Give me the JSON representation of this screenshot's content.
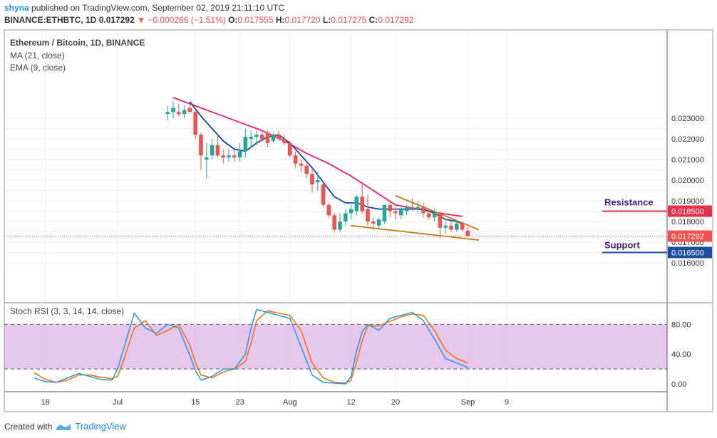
{
  "header": {
    "user": "shyna",
    "published_text": "published on TradingView.com, September 02, 2019 21:11:10 UTC",
    "symbol": "BINANCE:ETHBTC, 1D",
    "last": "0.017292",
    "change": "−0.000266 (−1.51%)",
    "o_label": "O:",
    "o": "0.017555",
    "h_label": "H:",
    "h": "0.017720",
    "l_label": "L:",
    "l": "0.017275",
    "c_label": "C:",
    "c": "0.017292"
  },
  "legend": {
    "title": "Ethereum / Bitcoin, 1D, BINANCE",
    "ma": "MA (21, close)",
    "ema": "EMA (9, close)",
    "rsi": "Stoch RSI (3, 3, 14, 14, close)"
  },
  "annotations": {
    "resistance": "Resistance",
    "support": "Support"
  },
  "footer": {
    "created_with": "Created with",
    "brand": "TradingView"
  },
  "colors": {
    "up": "#26a69a",
    "down": "#ef5350",
    "ma": "#e91e63",
    "ema": "#0d47a1",
    "wedge": "#c27b16",
    "resistance": "#e5324a",
    "support": "#1a4fa0",
    "rsi_k": "#2196f3",
    "rsi_d": "#ff6d00",
    "rsi_band": "#e1bee7"
  },
  "chart_data": [
    {
      "type": "candlestick",
      "title": "Ethereum / Bitcoin, 1D, BINANCE",
      "y_ticks": [
        0.016,
        0.0165,
        0.017,
        0.0175,
        0.018,
        0.0185,
        0.019,
        0.0195,
        0.02,
        0.0205,
        0.021,
        0.0215,
        0.022,
        0.0225,
        0.023
      ],
      "y_tick_labels": [
        "0.016000",
        "",
        "0.017000",
        "",
        "0.018000",
        "",
        "0.019000",
        "",
        "0.020000",
        "",
        "0.021000",
        "",
        "0.022000",
        "",
        "0.023000"
      ],
      "x_tick_labels": [
        "18",
        "Jul",
        "15",
        "23",
        "Aug",
        "12",
        "20",
        "Sep",
        "9"
      ],
      "x_tick_days": [
        -13,
        0,
        14,
        22,
        31,
        42,
        50,
        63,
        70
      ],
      "candles": [
        {
          "d": 9,
          "o": 0.0232,
          "h": 0.0236,
          "l": 0.0229,
          "c": 0.0233
        },
        {
          "d": 10,
          "o": 0.0233,
          "h": 0.0238,
          "l": 0.023,
          "c": 0.0235
        },
        {
          "d": 11,
          "o": 0.0233,
          "h": 0.0237,
          "l": 0.0231,
          "c": 0.0232
        },
        {
          "d": 12,
          "o": 0.0232,
          "h": 0.0236,
          "l": 0.023,
          "c": 0.0234
        },
        {
          "d": 13,
          "o": 0.0235,
          "h": 0.0238,
          "l": 0.0233,
          "c": 0.0233
        },
        {
          "d": 14,
          "o": 0.0233,
          "h": 0.0235,
          "l": 0.022,
          "c": 0.0222
        },
        {
          "d": 15,
          "o": 0.0222,
          "h": 0.0223,
          "l": 0.0205,
          "c": 0.0212
        },
        {
          "d": 16,
          "o": 0.021,
          "h": 0.0218,
          "l": 0.0201,
          "c": 0.0211
        },
        {
          "d": 17,
          "o": 0.0212,
          "h": 0.022,
          "l": 0.021,
          "c": 0.0217
        },
        {
          "d": 18,
          "o": 0.0217,
          "h": 0.0222,
          "l": 0.0211,
          "c": 0.0212
        },
        {
          "d": 19,
          "o": 0.0212,
          "h": 0.0215,
          "l": 0.0208,
          "c": 0.0211
        },
        {
          "d": 20,
          "o": 0.0211,
          "h": 0.0215,
          "l": 0.0209,
          "c": 0.0212
        },
        {
          "d": 21,
          "o": 0.0212,
          "h": 0.0216,
          "l": 0.0209,
          "c": 0.0211
        },
        {
          "d": 22,
          "o": 0.0211,
          "h": 0.0218,
          "l": 0.0209,
          "c": 0.0214
        },
        {
          "d": 23,
          "o": 0.0214,
          "h": 0.0225,
          "l": 0.0211,
          "c": 0.0221
        },
        {
          "d": 24,
          "o": 0.022,
          "h": 0.0224,
          "l": 0.0216,
          "c": 0.0221
        },
        {
          "d": 25,
          "o": 0.0221,
          "h": 0.0224,
          "l": 0.0217,
          "c": 0.0222
        },
        {
          "d": 26,
          "o": 0.0222,
          "h": 0.0224,
          "l": 0.0219,
          "c": 0.022
        },
        {
          "d": 27,
          "o": 0.0223,
          "h": 0.0224,
          "l": 0.0216,
          "c": 0.0218
        },
        {
          "d": 28,
          "o": 0.0219,
          "h": 0.0223,
          "l": 0.0218,
          "c": 0.0222
        },
        {
          "d": 29,
          "o": 0.0222,
          "h": 0.0224,
          "l": 0.0219,
          "c": 0.022
        },
        {
          "d": 30,
          "o": 0.022,
          "h": 0.0222,
          "l": 0.0217,
          "c": 0.0218
        },
        {
          "d": 31,
          "o": 0.0218,
          "h": 0.0219,
          "l": 0.0211,
          "c": 0.0212
        },
        {
          "d": 32,
          "o": 0.0212,
          "h": 0.0214,
          "l": 0.0206,
          "c": 0.0208
        },
        {
          "d": 33,
          "o": 0.0208,
          "h": 0.021,
          "l": 0.0204,
          "c": 0.0207
        },
        {
          "d": 34,
          "o": 0.0207,
          "h": 0.0209,
          "l": 0.0201,
          "c": 0.0203
        },
        {
          "d": 35,
          "o": 0.0203,
          "h": 0.0206,
          "l": 0.0194,
          "c": 0.0198
        },
        {
          "d": 36,
          "o": 0.0199,
          "h": 0.0204,
          "l": 0.0195,
          "c": 0.02
        },
        {
          "d": 37,
          "o": 0.0198,
          "h": 0.0199,
          "l": 0.0187,
          "c": 0.0188
        },
        {
          "d": 38,
          "o": 0.0188,
          "h": 0.0189,
          "l": 0.0182,
          "c": 0.0183
        },
        {
          "d": 39,
          "o": 0.0183,
          "h": 0.0184,
          "l": 0.0175,
          "c": 0.0176
        },
        {
          "d": 40,
          "o": 0.0176,
          "h": 0.0184,
          "l": 0.0175,
          "c": 0.018
        },
        {
          "d": 41,
          "o": 0.018,
          "h": 0.0186,
          "l": 0.0178,
          "c": 0.0184
        },
        {
          "d": 42,
          "o": 0.0184,
          "h": 0.0188,
          "l": 0.0181,
          "c": 0.0186
        },
        {
          "d": 43,
          "o": 0.0185,
          "h": 0.0193,
          "l": 0.0183,
          "c": 0.0192
        },
        {
          "d": 44,
          "o": 0.0192,
          "h": 0.0198,
          "l": 0.0184,
          "c": 0.0185
        },
        {
          "d": 45,
          "o": 0.0186,
          "h": 0.0193,
          "l": 0.0178,
          "c": 0.018
        },
        {
          "d": 46,
          "o": 0.018,
          "h": 0.0182,
          "l": 0.0176,
          "c": 0.0179
        },
        {
          "d": 47,
          "o": 0.0178,
          "h": 0.0182,
          "l": 0.0176,
          "c": 0.0181
        },
        {
          "d": 48,
          "o": 0.018,
          "h": 0.0188,
          "l": 0.0179,
          "c": 0.0188
        },
        {
          "d": 49,
          "o": 0.0188,
          "h": 0.019,
          "l": 0.0182,
          "c": 0.0185
        },
        {
          "d": 50,
          "o": 0.0185,
          "h": 0.0188,
          "l": 0.0181,
          "c": 0.0184
        },
        {
          "d": 51,
          "o": 0.0183,
          "h": 0.0187,
          "l": 0.0181,
          "c": 0.0186
        },
        {
          "d": 52,
          "o": 0.0185,
          "h": 0.0188,
          "l": 0.0183,
          "c": 0.0187
        },
        {
          "d": 53,
          "o": 0.0187,
          "h": 0.0191,
          "l": 0.0185,
          "c": 0.0186
        },
        {
          "d": 54,
          "o": 0.0186,
          "h": 0.019,
          "l": 0.0184,
          "c": 0.0187
        },
        {
          "d": 55,
          "o": 0.0187,
          "h": 0.0189,
          "l": 0.0182,
          "c": 0.0184
        },
        {
          "d": 56,
          "o": 0.0184,
          "h": 0.0186,
          "l": 0.0181,
          "c": 0.0182
        },
        {
          "d": 57,
          "o": 0.0182,
          "h": 0.0186,
          "l": 0.018,
          "c": 0.0184
        },
        {
          "d": 58,
          "o": 0.0184,
          "h": 0.0185,
          "l": 0.0172,
          "c": 0.0177
        },
        {
          "d": 59,
          "o": 0.0177,
          "h": 0.018,
          "l": 0.0174,
          "c": 0.0178
        },
        {
          "d": 60,
          "o": 0.0178,
          "h": 0.018,
          "l": 0.0175,
          "c": 0.0176
        },
        {
          "d": 61,
          "o": 0.0176,
          "h": 0.018,
          "l": 0.0175,
          "c": 0.0179
        },
        {
          "d": 62,
          "o": 0.0179,
          "h": 0.018,
          "l": 0.0175,
          "c": 0.0176
        },
        {
          "d": 63,
          "o": 0.017555,
          "h": 0.01772,
          "l": 0.017275,
          "c": 0.017292
        }
      ],
      "ma_21": {
        "d": [
          10,
          14,
          18,
          22,
          26,
          30,
          34,
          38,
          42,
          46,
          50,
          54,
          58,
          62
        ],
        "v": [
          0.024,
          0.0236,
          0.0232,
          0.0228,
          0.0224,
          0.0219,
          0.0213,
          0.0208,
          0.0202,
          0.0195,
          0.0188,
          0.0186,
          0.0184,
          0.01825
        ]
      },
      "ema_9": {
        "d": [
          13,
          15,
          17,
          19,
          21,
          23,
          25,
          27,
          29,
          31,
          33,
          35,
          37,
          39,
          41,
          43,
          45,
          47,
          49,
          51,
          53,
          55,
          57,
          59,
          61,
          62
        ],
        "v": [
          0.0238,
          0.0231,
          0.0225,
          0.0219,
          0.0215,
          0.0214,
          0.0218,
          0.0221,
          0.0222,
          0.0218,
          0.0212,
          0.0206,
          0.0199,
          0.0192,
          0.0189,
          0.0189,
          0.0187,
          0.0186,
          0.0186,
          0.0186,
          0.0186,
          0.0186,
          0.0184,
          0.0181,
          0.018,
          0.0179
        ]
      },
      "last_price": 0.017292,
      "last_price_label": "0.017292",
      "resistance": {
        "value": 0.0185,
        "label": "0.018500"
      },
      "support": {
        "value": 0.0165,
        "label": "0.016500"
      },
      "wedge_upper": [
        [
          50,
          0.01925
        ],
        [
          65,
          0.0176
        ]
      ],
      "wedge_lower": [
        [
          42,
          0.0178
        ],
        [
          65,
          0.0171
        ]
      ]
    },
    {
      "type": "line",
      "title": "Stoch RSI (3, 3, 14, 14, close)",
      "y_ticks": [
        0,
        40,
        80
      ],
      "y_tick_labels": [
        "0.00",
        "40.00",
        "80.00"
      ],
      "band": [
        20,
        80
      ],
      "k": {
        "d": [
          -15,
          -13,
          -11,
          -9,
          -7,
          -5,
          -3,
          -1,
          0,
          1,
          3,
          5,
          7,
          9,
          11,
          13,
          14,
          15,
          17,
          19,
          21,
          23,
          24,
          25,
          27,
          29,
          31,
          33,
          35,
          37,
          39,
          41,
          42,
          43,
          44,
          45,
          47,
          49,
          51,
          53,
          55,
          57,
          59,
          61,
          63
        ],
        "v": [
          8,
          3,
          2,
          8,
          14,
          10,
          6,
          5,
          20,
          45,
          95,
          75,
          68,
          80,
          75,
          38,
          18,
          5,
          10,
          20,
          20,
          40,
          75,
          100,
          96,
          92,
          88,
          50,
          12,
          2,
          1,
          0,
          10,
          45,
          70,
          80,
          72,
          88,
          92,
          96,
          85,
          60,
          34,
          28,
          22
        ]
      },
      "d": {
        "d": [
          -15,
          -13,
          -11,
          -9,
          -7,
          -5,
          -3,
          -1,
          0,
          1,
          3,
          5,
          7,
          9,
          11,
          13,
          14,
          15,
          17,
          19,
          21,
          23,
          24,
          25,
          27,
          29,
          31,
          33,
          35,
          37,
          39,
          41,
          42,
          43,
          44,
          45,
          47,
          49,
          51,
          53,
          55,
          57,
          59,
          61,
          63
        ],
        "v": [
          15,
          6,
          2,
          5,
          12,
          12,
          9,
          7,
          10,
          30,
          75,
          85,
          65,
          72,
          80,
          52,
          28,
          12,
          8,
          16,
          20,
          30,
          55,
          85,
          98,
          95,
          92,
          72,
          28,
          8,
          2,
          1,
          5,
          30,
          58,
          78,
          78,
          84,
          90,
          94,
          92,
          72,
          45,
          34,
          28
        ]
      }
    }
  ]
}
